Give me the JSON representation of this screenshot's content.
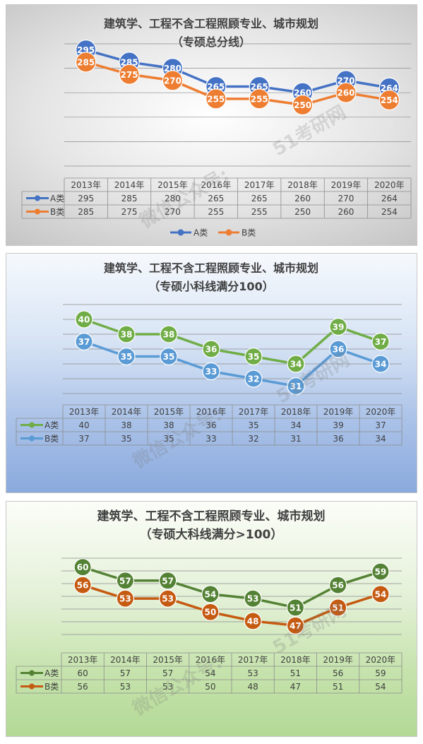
{
  "watermark": {
    "left_text": "微信公众号:",
    "right_text": "51考研网"
  },
  "charts": [
    {
      "title_line1": "建筑学、工程不含工程照顾专业、城市规划",
      "title_line2": "（专硕总分线）",
      "colors": {
        "A类": "#4472c4",
        "B类": "#ed7d31"
      },
      "legend_position": "bottom"
    },
    {
      "title_line1": "建筑学、工程不含工程照顾专业、城市规划",
      "title_line2": "（专硕小科线满分100）",
      "colors": {
        "A类": "#70ad47",
        "B类": "#5b9bd5"
      },
      "legend_position": "none"
    },
    {
      "title_line1": "建筑学、工程不含工程照顾专业、城市规划",
      "title_line2": "（专硕大科线满分>100）",
      "colors": {
        "A类": "#548235",
        "B类": "#c55a11"
      },
      "legend_position": "none"
    }
  ],
  "chart_data": [
    {
      "type": "line",
      "categories": [
        "2013年",
        "2014年",
        "2015年",
        "2016年",
        "2017年",
        "2018年",
        "2019年",
        "2020年"
      ],
      "series": [
        {
          "name": "A类",
          "values": [
            295,
            285,
            280,
            265,
            265,
            260,
            270,
            264
          ]
        },
        {
          "name": "B类",
          "values": [
            285,
            275,
            270,
            255,
            255,
            250,
            260,
            254
          ]
        }
      ],
      "ylim": [
        200,
        300
      ],
      "grid": true,
      "data_table": true,
      "legend": "bottom"
    },
    {
      "type": "line",
      "categories": [
        "2013年",
        "2014年",
        "2015年",
        "2016年",
        "2017年",
        "2018年",
        "2019年",
        "2020年"
      ],
      "series": [
        {
          "name": "A类",
          "values": [
            40,
            38,
            38,
            36,
            35,
            34,
            39,
            37
          ]
        },
        {
          "name": "B类",
          "values": [
            37,
            35,
            35,
            33,
            32,
            31,
            36,
            34
          ]
        }
      ],
      "ylim": [
        30,
        42
      ],
      "grid": true,
      "data_table": true
    },
    {
      "type": "line",
      "categories": [
        "2013年",
        "2014年",
        "2015年",
        "2016年",
        "2017年",
        "2018年",
        "2019年",
        "2020年"
      ],
      "series": [
        {
          "name": "A类",
          "values": [
            60,
            57,
            57,
            54,
            53,
            51,
            56,
            59
          ]
        },
        {
          "name": "B类",
          "values": [
            56,
            53,
            53,
            50,
            48,
            47,
            51,
            54
          ]
        }
      ],
      "ylim": [
        45,
        62
      ],
      "grid": true,
      "data_table": true
    }
  ]
}
